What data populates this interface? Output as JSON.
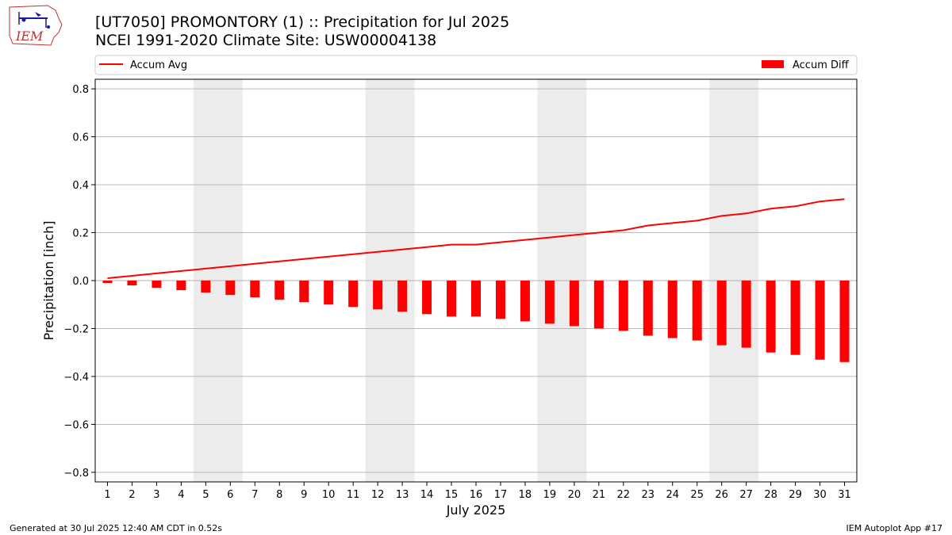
{
  "header": {
    "title_line1": "[UT7050] PROMONTORY (1) :: Precipitation for Jul 2025",
    "title_line2": "NCEI 1991-2020 Climate Site: USW00004138",
    "logo_text": "IEM"
  },
  "footer": {
    "left": "Generated at 30 Jul 2025 12:40 AM CDT in 0.52s",
    "right": "IEM Autoplot App #17"
  },
  "colors": {
    "accum_avg": "#ff0000",
    "accum_diff": "#ff0000",
    "weekend_band": "#ececec",
    "grid": "#b0b0b0"
  },
  "chart_data": {
    "type": "bar",
    "xlabel": "July 2025",
    "ylabel": "Precipitation [inch]",
    "ylim": [
      -0.84,
      0.84
    ],
    "yticks": [
      -0.8,
      -0.6,
      -0.4,
      -0.2,
      0.0,
      0.2,
      0.4,
      0.6,
      0.8
    ],
    "ytick_labels": [
      "−0.8",
      "−0.6",
      "−0.4",
      "−0.2",
      "0.0",
      "0.2",
      "0.4",
      "0.6",
      "0.8"
    ],
    "xlim": [
      0.5,
      31.5
    ],
    "categories": [
      1,
      2,
      3,
      4,
      5,
      6,
      7,
      8,
      9,
      10,
      11,
      12,
      13,
      14,
      15,
      16,
      17,
      18,
      19,
      20,
      21,
      22,
      23,
      24,
      25,
      26,
      27,
      28,
      29,
      30,
      31
    ],
    "grid": "horizontal",
    "legend": [
      {
        "label": "Accum Avg",
        "kind": "line",
        "placement": "top-left"
      },
      {
        "label": "Accum Diff",
        "kind": "bar",
        "placement": "top-right"
      }
    ],
    "shaded_days": [
      [
        5,
        6
      ],
      [
        12,
        13
      ],
      [
        19,
        20
      ],
      [
        26,
        27
      ]
    ],
    "series": [
      {
        "name": "Accum Avg",
        "kind": "line",
        "values": [
          0.01,
          0.02,
          0.03,
          0.04,
          0.05,
          0.06,
          0.07,
          0.08,
          0.09,
          0.1,
          0.11,
          0.12,
          0.13,
          0.14,
          0.15,
          0.15,
          0.16,
          0.17,
          0.18,
          0.19,
          0.2,
          0.21,
          0.23,
          0.24,
          0.25,
          0.27,
          0.28,
          0.3,
          0.31,
          0.33,
          0.34
        ]
      },
      {
        "name": "Accum Diff",
        "kind": "bar",
        "values": [
          -0.01,
          -0.02,
          -0.03,
          -0.04,
          -0.05,
          -0.06,
          -0.07,
          -0.08,
          -0.09,
          -0.1,
          -0.11,
          -0.12,
          -0.13,
          -0.14,
          -0.15,
          -0.15,
          -0.16,
          -0.17,
          -0.18,
          -0.19,
          -0.2,
          -0.21,
          -0.23,
          -0.24,
          -0.25,
          -0.27,
          -0.28,
          -0.3,
          -0.31,
          -0.33,
          -0.34
        ]
      }
    ]
  }
}
